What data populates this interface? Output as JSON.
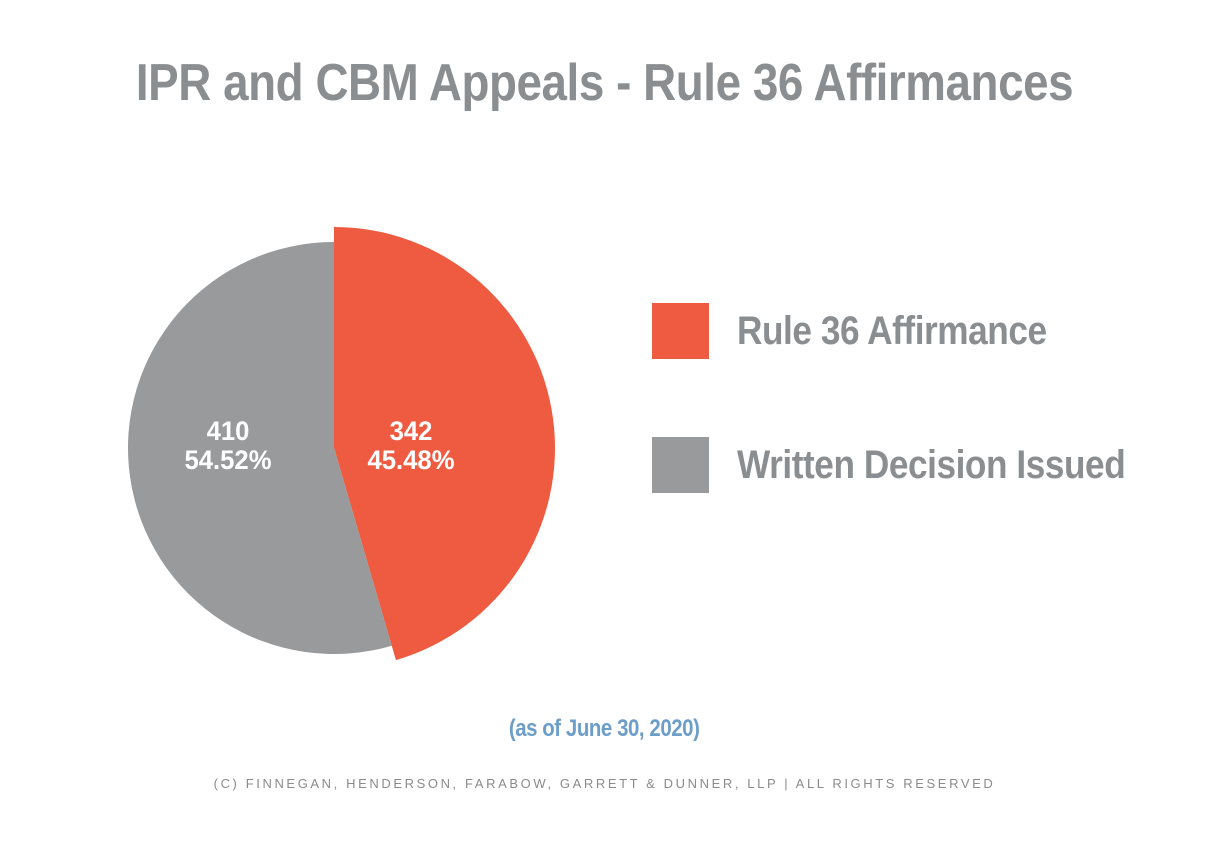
{
  "page": {
    "title": "IPR and CBM Appeals - Rule 36 Affirmances",
    "caption": "(as of June 30, 2020)",
    "footer": "(C) FINNEGAN, HENDERSON, FARABOW, GARRETT & DUNNER, LLP | ALL RIGHTS RESERVED"
  },
  "colors": {
    "title_text": "#8B8E90",
    "legend_text": "#8B8E91",
    "caption_text": "#6D9DC9",
    "footer_text": "#8A8B8D",
    "slice_label_text": "#FFFFFF",
    "accent_orange": "#EF5B40",
    "accent_gray": "#999A9C"
  },
  "chart_data": {
    "type": "pie",
    "title": "IPR and CBM Appeals - Rule 36 Affirmances",
    "caption": "(as of June 30, 2020)",
    "total": 752,
    "start_angle_deg": 0,
    "direction": "clockwise",
    "legend_position": "right",
    "slices": [
      {
        "label": "Rule 36 Affirmance",
        "value": 342,
        "pct": 45.48,
        "value_label": "342",
        "pct_label": "45.48%",
        "color": "#EF5B40"
      },
      {
        "label": "Written Decision Issued",
        "value": 410,
        "pct": 54.52,
        "value_label": "410",
        "pct_label": "54.52%",
        "color": "#999A9C"
      }
    ]
  }
}
